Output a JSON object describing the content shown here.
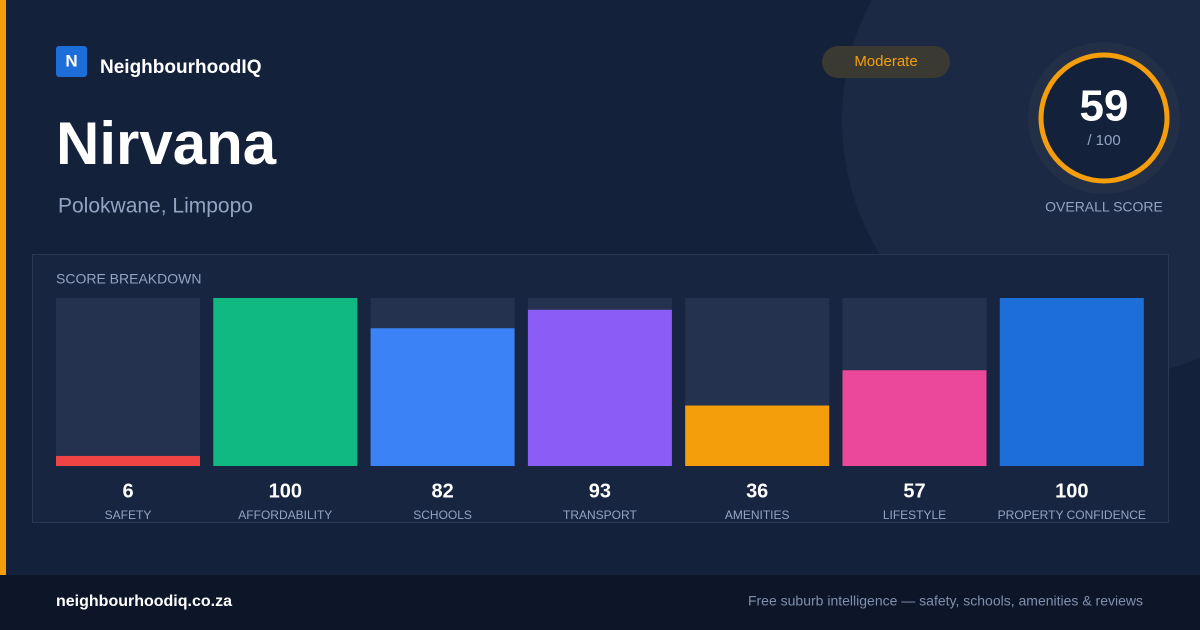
{
  "brand": {
    "logo": "N",
    "name": "NeighbourhoodIQ"
  },
  "badge": "Moderate",
  "suburb": "Nirvana",
  "location": "Polokwane, Limpopo",
  "score": {
    "value": 59,
    "out_of": "/ 100",
    "label": "OVERALL SCORE"
  },
  "chart_data": {
    "type": "bar",
    "title": "SCORE BREAKDOWN",
    "categories": [
      "SAFETY",
      "AFFORDABILITY",
      "SCHOOLS",
      "TRANSPORT",
      "AMENITIES",
      "LIFESTYLE",
      "PROPERTY CONFIDENCE"
    ],
    "values": [
      6,
      100,
      82,
      93,
      36,
      57,
      100
    ],
    "colors": [
      "#ef4444",
      "#10b981",
      "#3b82f6",
      "#8b5cf6",
      "#f59e0b",
      "#ec4899",
      "#1d6ed8"
    ],
    "ylim": [
      0,
      100
    ]
  },
  "footer": {
    "url": "neighbourhoodiq.co.za",
    "tagline": "Free suburb intelligence — safety, schools, amenities & reviews"
  }
}
